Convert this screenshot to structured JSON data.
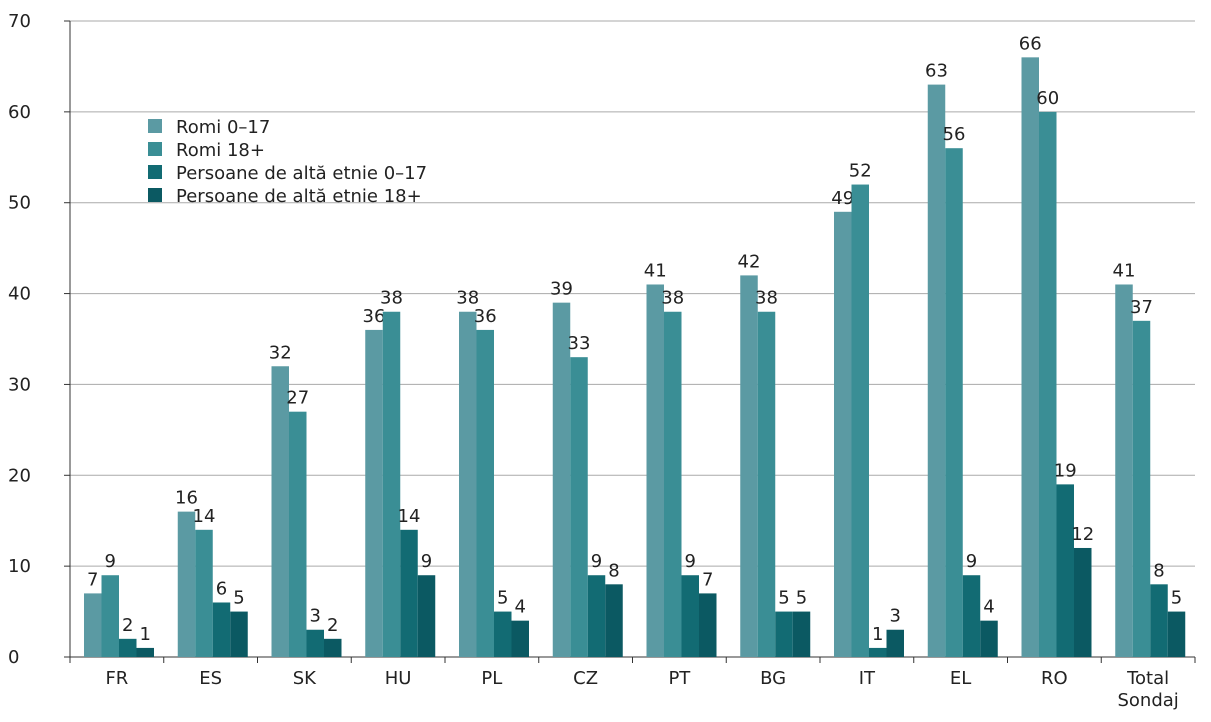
{
  "chart_data": {
    "type": "bar",
    "categories": [
      "FR",
      "ES",
      "SK",
      "HU",
      "PL",
      "CZ",
      "PT",
      "BG",
      "IT",
      "EL",
      "RO",
      "Total Sondaj"
    ],
    "series": [
      {
        "name": "Romi 0–17",
        "color": "#5b9aa3",
        "values": [
          7,
          16,
          32,
          36,
          38,
          39,
          41,
          42,
          49,
          63,
          66,
          41
        ]
      },
      {
        "name": "Romi 18+",
        "color": "#3a8e95",
        "values": [
          9,
          14,
          27,
          38,
          36,
          33,
          38,
          38,
          52,
          56,
          60,
          37
        ]
      },
      {
        "name": "Persoane de altă etnie 0–17",
        "color": "#126b73",
        "values": [
          2,
          6,
          3,
          14,
          5,
          9,
          9,
          5,
          1,
          9,
          19,
          8
        ]
      },
      {
        "name": "Persoane de altă etnie 18+",
        "color": "#0b5962",
        "values": [
          1,
          5,
          2,
          9,
          4,
          8,
          7,
          5,
          3,
          4,
          12,
          5
        ]
      }
    ],
    "ylim": [
      0,
      70
    ],
    "yticks": [
      0,
      10,
      20,
      30,
      40,
      50,
      60,
      70
    ],
    "grid": true,
    "legend": "upper left"
  }
}
